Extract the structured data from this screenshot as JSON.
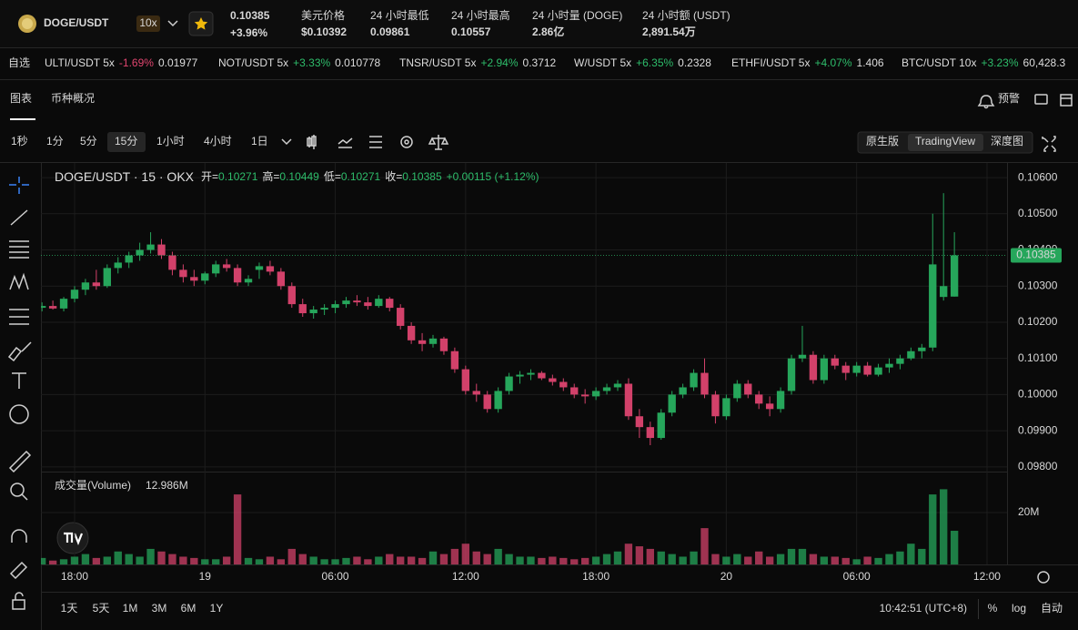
{
  "header": {
    "symbol": "DOGE/USDT",
    "leverage": "10x",
    "price": "0.10385",
    "change": "+3.96%",
    "stats": [
      {
        "label": "美元价格",
        "value": "$0.10392"
      },
      {
        "label": "24 小时最低",
        "value": "0.09861"
      },
      {
        "label": "24 小时最高",
        "value": "0.10557"
      },
      {
        "label": "24 小时量 (DOGE)",
        "value": "2.86亿"
      },
      {
        "label": "24 小时额 (USDT)",
        "value": "2,891.54万"
      }
    ]
  },
  "ticker": {
    "label": "自选",
    "items": [
      {
        "pair": "ULTI/USDT 5x",
        "change": "-1.69%",
        "price": "0.01977"
      },
      {
        "pair": "NOT/USDT 5x",
        "change": "+3.33%",
        "price": "0.010778"
      },
      {
        "pair": "TNSR/USDT 5x",
        "change": "+2.94%",
        "price": "0.3712"
      },
      {
        "pair": "W/USDT 5x",
        "change": "+6.35%",
        "price": "0.2328"
      },
      {
        "pair": "ETHFI/USDT 5x",
        "change": "+4.07%",
        "price": "1.406"
      },
      {
        "pair": "BTC/USDT 10x",
        "change": "+3.23%",
        "price": "60,428.3"
      }
    ]
  },
  "tabs": [
    "图表",
    "币种概况"
  ],
  "alert": "预警",
  "intervals": [
    "1秒",
    "1分",
    "5分",
    "15分",
    "1小时",
    "4小时",
    "1日"
  ],
  "views": [
    "原生版",
    "TradingView",
    "深度图"
  ],
  "chart_data": {
    "type": "candlestick",
    "title": "DOGE/USDT · 15 · OKX",
    "ohlc_legend": [
      {
        "label": "开=",
        "value": "0.10271"
      },
      {
        "label": "高=",
        "value": "0.10449"
      },
      {
        "label": "低=",
        "value": "0.10271"
      },
      {
        "label": "收=",
        "value": "0.10385"
      }
    ],
    "change_legend": "+0.00115 (+1.12%)",
    "up_color": "#26a65b",
    "down_color": "#d2416a",
    "grid": true,
    "categories": [
      null,
      null,
      null,
      "18:00",
      null,
      null,
      null,
      null,
      null,
      null,
      null,
      null,
      null,
      null,
      null,
      "19",
      null,
      null,
      null,
      null,
      null,
      null,
      null,
      null,
      null,
      null,
      null,
      "06:00",
      null,
      null,
      null,
      null,
      null,
      null,
      null,
      null,
      null,
      null,
      null,
      "12:00",
      null,
      null,
      null,
      null,
      null,
      null,
      null,
      null,
      null,
      null,
      null,
      "18:00",
      null,
      null,
      null,
      null,
      null,
      null,
      null,
      null,
      null,
      null,
      null,
      "20",
      null,
      null,
      null,
      null,
      null,
      null,
      null,
      null,
      null,
      null,
      null,
      "06:00",
      null,
      null,
      null,
      null,
      null,
      null,
      null,
      null,
      null,
      null,
      null,
      "12:00",
      null
    ],
    "open": [
      0.1024,
      0.10245,
      0.10238,
      0.10265,
      0.1029,
      0.1031,
      0.103,
      0.1035,
      0.10365,
      0.10385,
      0.104,
      0.10415,
      0.10385,
      0.10345,
      0.10325,
      0.10315,
      0.10335,
      0.1036,
      0.1035,
      0.1031,
      0.10345,
      0.10355,
      0.1034,
      0.103,
      0.1025,
      0.10225,
      0.10235,
      0.1024,
      0.1025,
      0.1026,
      0.10255,
      0.10245,
      0.10265,
      0.1024,
      0.1019,
      0.1015,
      0.1014,
      0.10155,
      0.1012,
      0.1007,
      0.1001,
      0.1,
      0.0996,
      0.1001,
      0.1005,
      0.10055,
      0.1006,
      0.10045,
      0.10035,
      0.1002,
      0.1,
      0.09995,
      0.1001,
      0.1002,
      0.1003,
      0.0994,
      0.0991,
      0.0988,
      0.0995,
      0.1,
      0.1002,
      0.1006,
      0.1,
      0.0994,
      0.0999,
      0.1003,
      0.1,
      0.09975,
      0.0996,
      0.1001,
      0.101,
      0.1011,
      0.1004,
      0.101,
      0.1008,
      0.1006,
      0.1008,
      0.10055,
      0.10075,
      0.10085,
      0.101,
      0.1012,
      0.1013,
      0.1027,
      0.10271,
      null,
      null,
      null,
      null
    ],
    "high": [
      0.10255,
      0.1026,
      0.1027,
      0.103,
      0.1032,
      0.10345,
      0.1036,
      0.1038,
      0.10395,
      0.1042,
      0.10449,
      0.1043,
      0.10395,
      0.1036,
      0.10345,
      0.1034,
      0.1037,
      0.10375,
      0.1036,
      0.1033,
      0.10365,
      0.1037,
      0.1035,
      0.1031,
      0.10265,
      0.10245,
      0.1025,
      0.1026,
      0.1027,
      0.10275,
      0.1027,
      0.10275,
      0.1027,
      0.1025,
      0.102,
      0.1017,
      0.10165,
      0.1016,
      0.1013,
      0.1008,
      0.1003,
      0.1001,
      0.1002,
      0.1006,
      0.10065,
      0.1007,
      0.10065,
      0.10055,
      0.10045,
      0.1003,
      0.10015,
      0.1002,
      0.1003,
      0.1004,
      0.10045,
      0.0996,
      0.09925,
      0.0996,
      0.1001,
      0.1003,
      0.1007,
      0.101,
      0.1001,
      0.1,
      0.1004,
      0.1004,
      0.1001,
      0.09995,
      0.1002,
      0.1011,
      0.1019,
      0.1012,
      0.1011,
      0.1011,
      0.1009,
      0.1009,
      0.1009,
      0.10085,
      0.101,
      0.1011,
      0.1013,
      0.1014,
      0.105,
      0.10557,
      0.10449,
      null,
      null,
      null,
      null
    ],
    "low": [
      0.1023,
      0.10235,
      0.1023,
      0.10255,
      0.10275,
      0.1029,
      0.10295,
      0.10335,
      0.1035,
      0.1037,
      0.1039,
      0.10375,
      0.1033,
      0.1031,
      0.103,
      0.10305,
      0.10325,
      0.1034,
      0.103,
      0.103,
      0.1032,
      0.1033,
      0.1029,
      0.1024,
      0.10215,
      0.1021,
      0.1022,
      0.10225,
      0.1024,
      0.10245,
      0.10235,
      0.1024,
      0.1023,
      0.1018,
      0.1014,
      0.1012,
      0.1013,
      0.1011,
      0.1006,
      0.1,
      0.0998,
      0.0995,
      0.0995,
      0.1,
      0.1003,
      0.1004,
      0.1004,
      0.10025,
      0.1001,
      0.0999,
      0.09975,
      0.09985,
      0.1,
      0.1001,
      0.0993,
      0.0988,
      0.0986,
      0.09875,
      0.0994,
      0.0999,
      0.1001,
      0.0999,
      0.0992,
      0.0993,
      0.0998,
      0.0999,
      0.0996,
      0.0994,
      0.0995,
      0.1,
      0.1009,
      0.1003,
      0.1003,
      0.1007,
      0.1004,
      0.1005,
      0.1005,
      0.1005,
      0.1006,
      0.1007,
      0.10095,
      0.101,
      0.1012,
      0.1026,
      0.10271,
      null,
      null,
      null,
      null
    ],
    "close": [
      0.10245,
      0.10238,
      0.10265,
      0.1029,
      0.1031,
      0.103,
      0.1035,
      0.10365,
      0.10385,
      0.104,
      0.10415,
      0.10385,
      0.10345,
      0.10325,
      0.10315,
      0.10335,
      0.1036,
      0.1035,
      0.1031,
      0.1032,
      0.10355,
      0.1034,
      0.103,
      0.1025,
      0.10225,
      0.10235,
      0.1024,
      0.1025,
      0.1026,
      0.10255,
      0.10245,
      0.10265,
      0.1024,
      0.1019,
      0.1015,
      0.1014,
      0.10155,
      0.1012,
      0.1007,
      0.1001,
      0.1,
      0.0996,
      0.1001,
      0.1005,
      0.10055,
      0.1006,
      0.10045,
      0.10035,
      0.1002,
      0.1,
      0.09995,
      0.1001,
      0.1002,
      0.1003,
      0.0994,
      0.0991,
      0.0988,
      0.0995,
      0.1,
      0.1002,
      0.1006,
      0.1,
      0.0994,
      0.0999,
      0.1003,
      0.1,
      0.09975,
      0.0996,
      0.1001,
      0.101,
      0.1011,
      0.1004,
      0.101,
      0.1008,
      0.1006,
      0.1008,
      0.10055,
      0.10075,
      0.10085,
      0.101,
      0.1012,
      0.1013,
      0.1036,
      0.103,
      0.10385,
      null,
      null,
      null,
      null
    ],
    "ylim": [
      0.09787,
      0.10638
    ],
    "yticks": [
      {
        "value": 0.098,
        "label": "0.09800"
      },
      {
        "value": 0.099,
        "label": "0.09900"
      },
      {
        "value": 0.1,
        "label": "0.10000"
      },
      {
        "value": 0.101,
        "label": "0.10100"
      },
      {
        "value": 0.102,
        "label": "0.10200"
      },
      {
        "value": 0.103,
        "label": "0.10300"
      },
      {
        "value": 0.104,
        "label": "0.10400"
      },
      {
        "value": 0.105,
        "label": "0.10500"
      },
      {
        "value": 0.106,
        "label": "0.10600"
      }
    ],
    "last_price": {
      "value": 0.10385,
      "label": "0.10385"
    },
    "volume": {
      "type": "bar",
      "title": "成交量(Volume)",
      "values": [
        2500000,
        1500000,
        2000000,
        3000000,
        4000000,
        2500000,
        3000000,
        5000000,
        4000000,
        3000000,
        6000000,
        5000000,
        4000000,
        3000000,
        2500000,
        2000000,
        2000000,
        3000000,
        27000000,
        2500000,
        2000000,
        3000000,
        2000000,
        6000000,
        4000000,
        3000000,
        2000000,
        2000000,
        2500000,
        3000000,
        2000000,
        3000000,
        4000000,
        3000000,
        3000000,
        2500000,
        5000000,
        4000000,
        6000000,
        8000000,
        5000000,
        4000000,
        6000000,
        4000000,
        3000000,
        3000000,
        2500000,
        3000000,
        2500000,
        2000000,
        2500000,
        3000000,
        4000000,
        5000000,
        8000000,
        7000000,
        6000000,
        5000000,
        4000000,
        3000000,
        5000000,
        14000000,
        4000000,
        3000000,
        4000000,
        3000000,
        5000000,
        3000000,
        4000000,
        6000000,
        6000000,
        4000000,
        3000000,
        3000000,
        2500000,
        2000000,
        3000000,
        2500000,
        4000000,
        5000000,
        8000000,
        6000000,
        27000000,
        29000000,
        12986000,
        null,
        null,
        null,
        null
      ],
      "value_labels": [
        null,
        null,
        null,
        null,
        null,
        null,
        null,
        null,
        null,
        null,
        null,
        null,
        null,
        null,
        null,
        null,
        null,
        null,
        null,
        null,
        null,
        null,
        null,
        null,
        null,
        null,
        null,
        null,
        null,
        null,
        null,
        null,
        null,
        null,
        null,
        null,
        null,
        null,
        null,
        null,
        null,
        null,
        null,
        null,
        null,
        null,
        null,
        null,
        null,
        null,
        null,
        null,
        null,
        null,
        null,
        null,
        null,
        null,
        null,
        null,
        null,
        null,
        null,
        null,
        null,
        null,
        null,
        null,
        null,
        null,
        null,
        null,
        null,
        null,
        null,
        null,
        null,
        null,
        null,
        null,
        null,
        null,
        null,
        null,
        "12.986M",
        null,
        null,
        null,
        null
      ],
      "ylim": [
        0,
        33000000
      ],
      "yticks": [
        {
          "value": 20000000,
          "label": "20M"
        }
      ]
    }
  },
  "footer": {
    "ranges": [
      "1天",
      "5天",
      "1M",
      "3M",
      "6M",
      "1Y"
    ],
    "clock": "10:42:51 (UTC+8)",
    "percent": "%",
    "log": "log",
    "auto": "自动"
  }
}
